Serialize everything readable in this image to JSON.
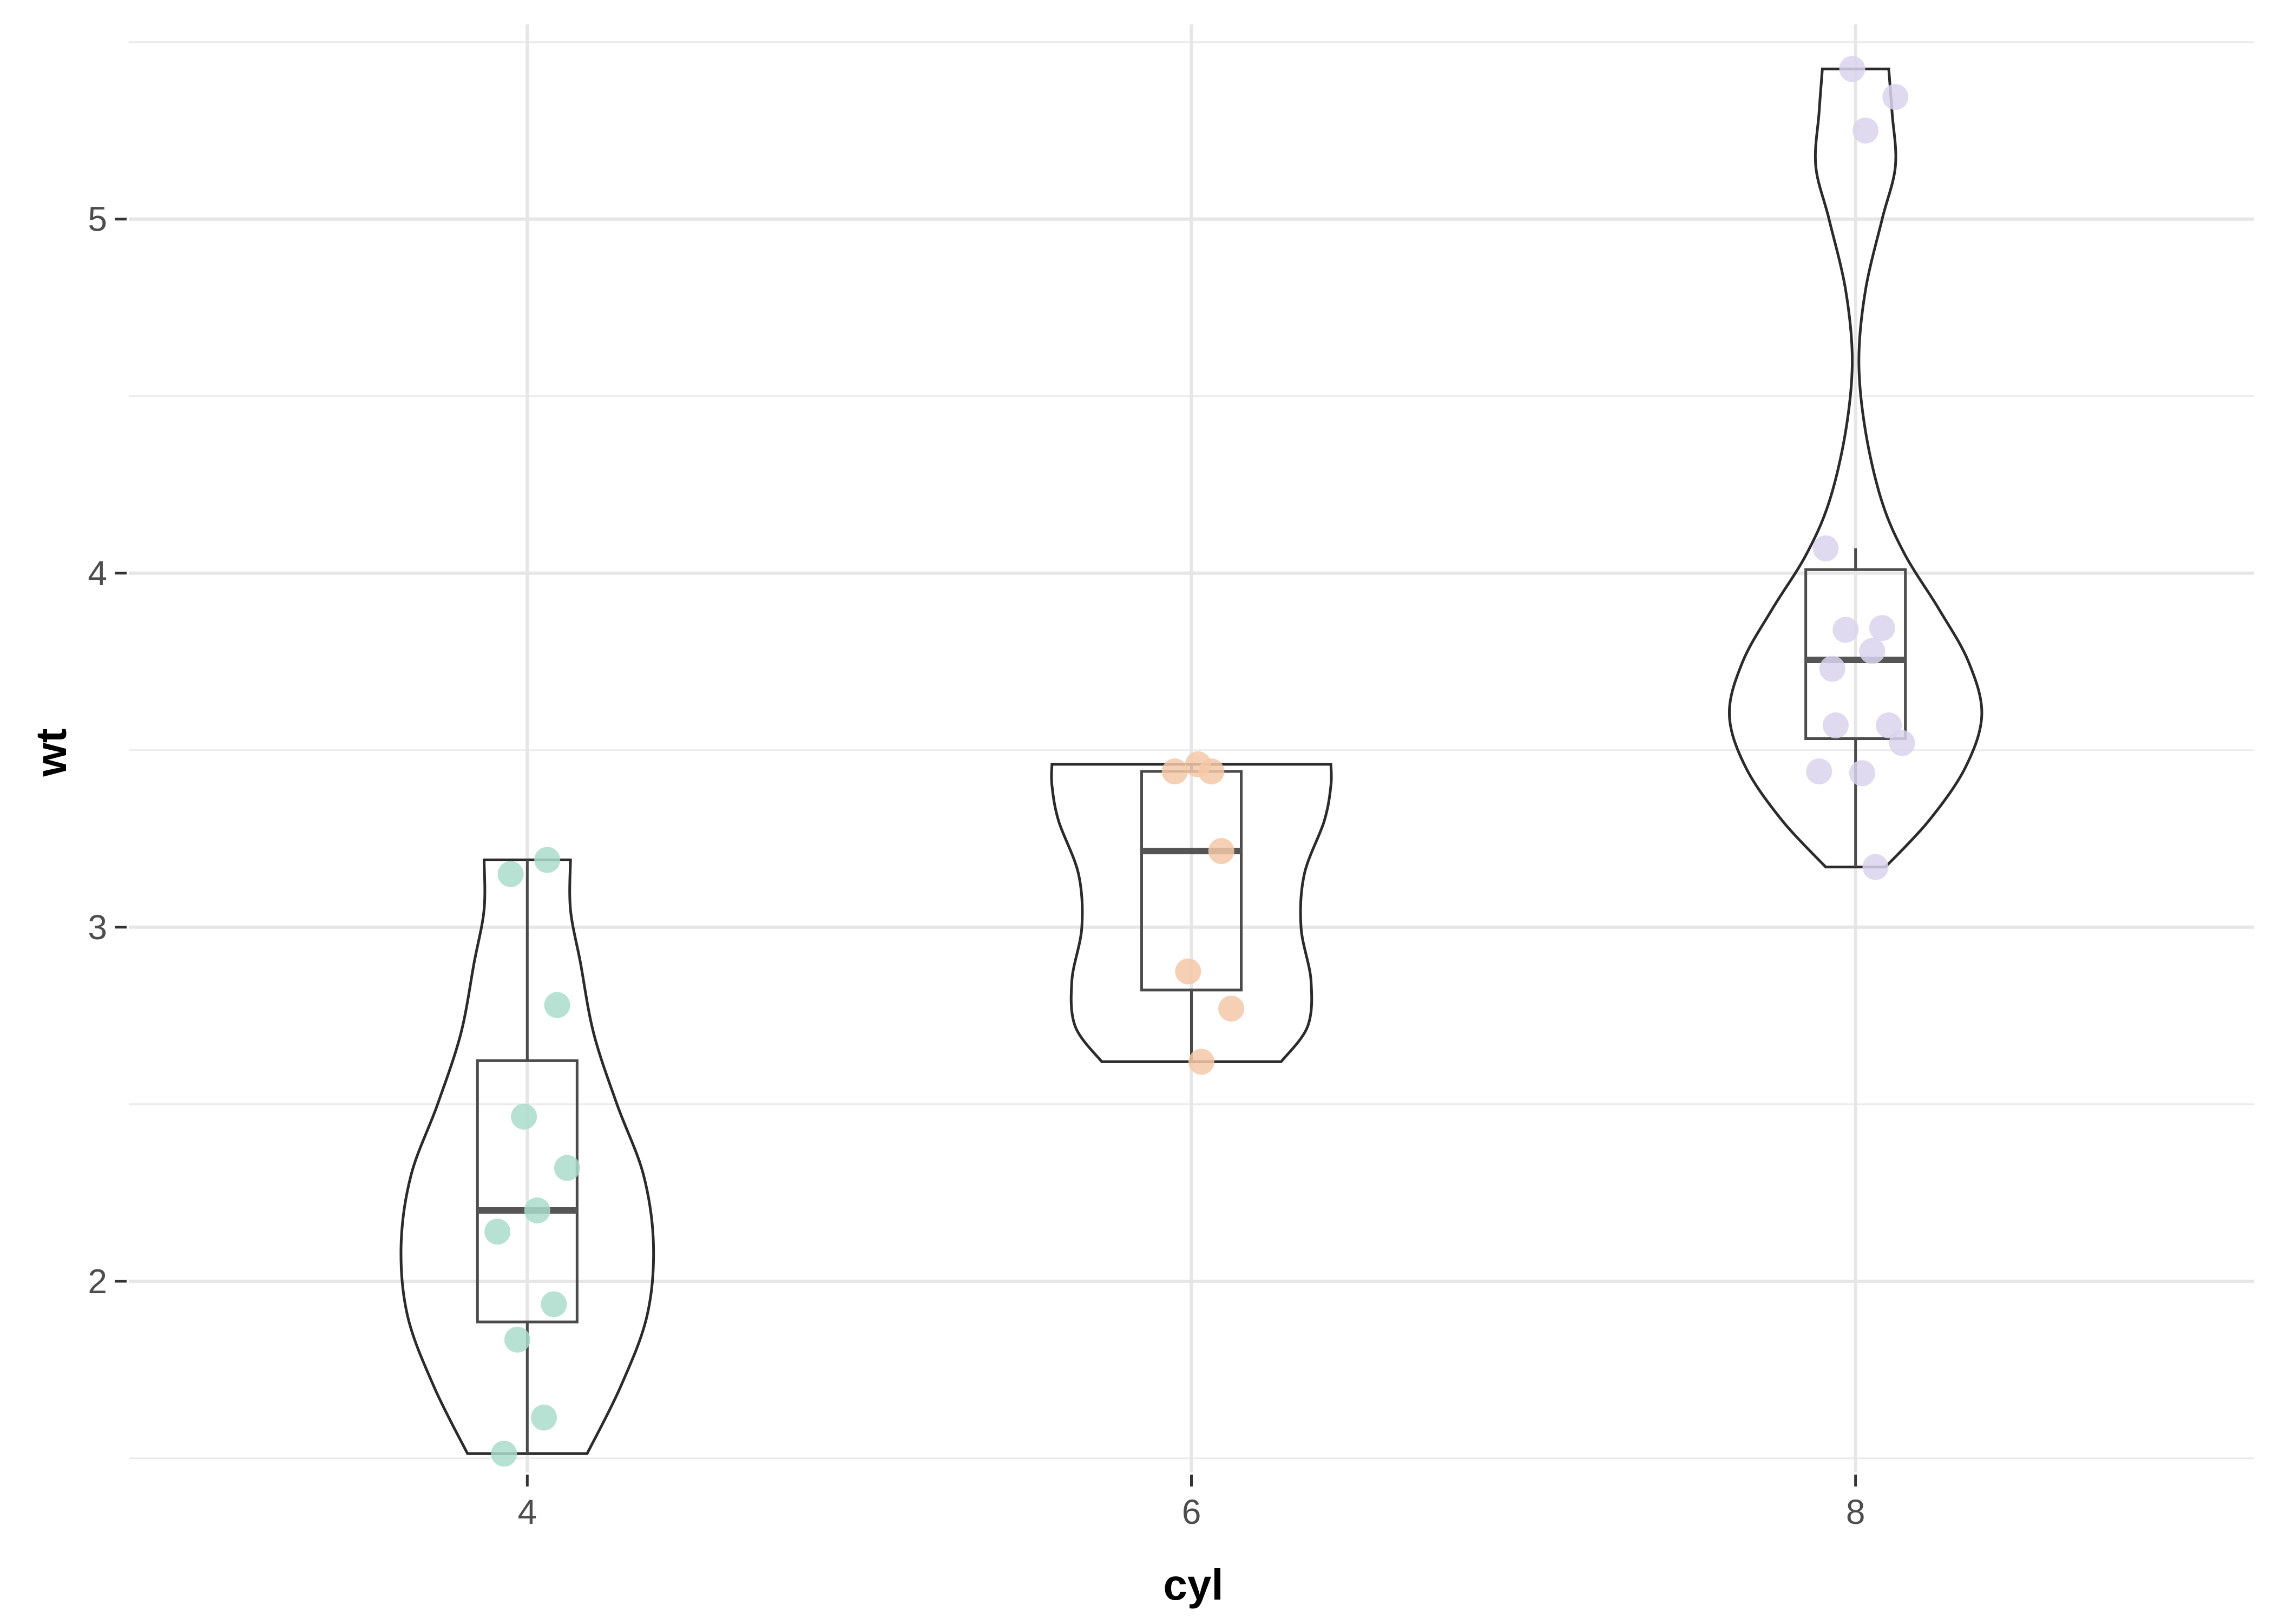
{
  "chart_data": {
    "type": "violin",
    "title": "",
    "xlabel": "cyl",
    "ylabel": "wt",
    "categories": [
      "4",
      "6",
      "8"
    ],
    "xlim": [
      2.8,
      9.2
    ],
    "ylim": [
      1.46,
      5.55
    ],
    "y_ticks": [
      2,
      3,
      4,
      5
    ],
    "x_ticks": [
      4,
      6,
      8
    ],
    "grid": true,
    "legend": "none",
    "groups": [
      {
        "x": 4,
        "color": "#aadccb",
        "box": {
          "min": 1.513,
          "q1": 1.885,
          "median": 2.2,
          "q3": 2.623,
          "max": 3.19
        },
        "points": [
          1.513,
          1.615,
          1.835,
          1.935,
          2.14,
          2.2,
          2.32,
          2.465,
          2.78,
          3.15,
          3.19
        ],
        "violin_profile": [
          [
            1.513,
            0.18
          ],
          [
            1.7,
            0.28
          ],
          [
            1.9,
            0.36
          ],
          [
            2.1,
            0.38
          ],
          [
            2.3,
            0.35
          ],
          [
            2.5,
            0.27
          ],
          [
            2.7,
            0.2
          ],
          [
            2.9,
            0.16
          ],
          [
            3.05,
            0.13
          ],
          [
            3.19,
            0.13
          ]
        ]
      },
      {
        "x": 6,
        "color": "#f4c8a8",
        "box": {
          "min": 2.62,
          "q1": 2.8225,
          "median": 3.215,
          "q3": 3.44,
          "max": 3.46
        },
        "points": [
          2.62,
          2.77,
          2.875,
          3.215,
          3.44,
          3.44,
          3.46
        ],
        "violin_profile": [
          [
            2.62,
            0.27
          ],
          [
            2.72,
            0.35
          ],
          [
            2.85,
            0.36
          ],
          [
            3.0,
            0.33
          ],
          [
            3.15,
            0.34
          ],
          [
            3.3,
            0.4
          ],
          [
            3.4,
            0.42
          ],
          [
            3.46,
            0.42
          ]
        ]
      },
      {
        "x": 8,
        "color": "#d9d4ec",
        "box": {
          "min": 3.17,
          "q1": 3.5325,
          "median": 3.755,
          "q3": 4.01,
          "max": 4.07
        },
        "points": [
          3.17,
          3.435,
          3.44,
          3.52,
          3.57,
          3.57,
          3.73,
          3.78,
          3.84,
          3.845,
          4.07,
          5.25,
          5.345,
          5.424
        ],
        "violin_profile": [
          [
            3.17,
            0.09
          ],
          [
            3.3,
            0.22
          ],
          [
            3.45,
            0.33
          ],
          [
            3.6,
            0.38
          ],
          [
            3.75,
            0.34
          ],
          [
            3.9,
            0.25
          ],
          [
            4.05,
            0.15
          ],
          [
            4.2,
            0.08
          ],
          [
            4.4,
            0.03
          ],
          [
            4.6,
            0.01
          ],
          [
            4.8,
            0.03
          ],
          [
            5.0,
            0.08
          ],
          [
            5.15,
            0.12
          ],
          [
            5.3,
            0.11
          ],
          [
            5.424,
            0.1
          ]
        ]
      }
    ]
  }
}
